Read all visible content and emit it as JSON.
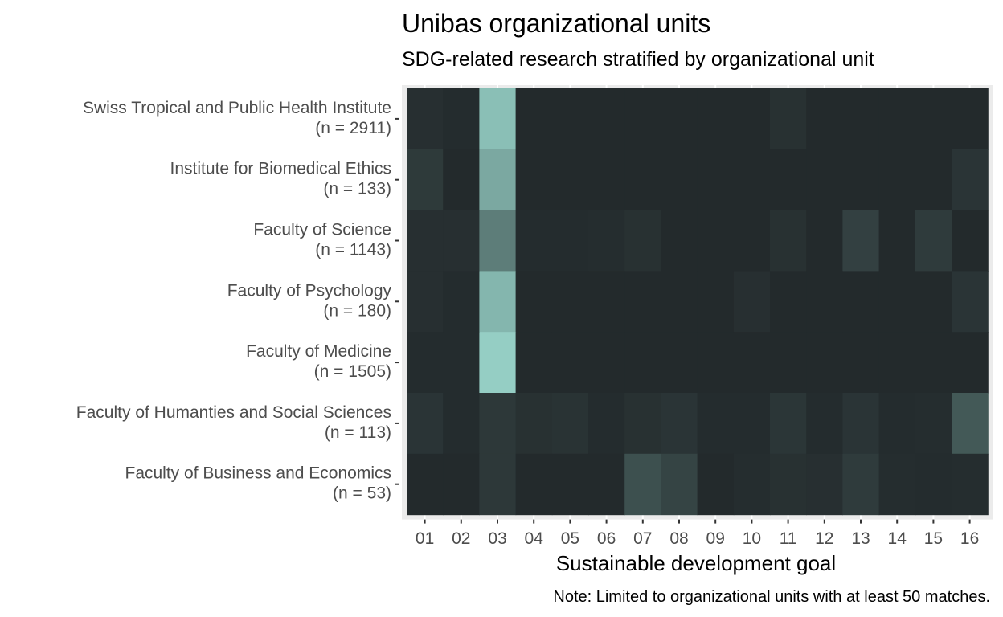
{
  "chart_data": {
    "type": "heatmap",
    "title": "Unibas organizational units",
    "subtitle": "SDG-related research stratified by organizational unit",
    "xlabel": "Sustainable development goal",
    "caption": "Note: Limited to organizational units with at least 50 matches.",
    "x_categories": [
      "01",
      "02",
      "03",
      "04",
      "05",
      "06",
      "07",
      "08",
      "09",
      "10",
      "11",
      "12",
      "13",
      "14",
      "15",
      "16"
    ],
    "y_categories": [
      {
        "name": "Swiss Tropical and Public Health Institute",
        "n": "(n = 2911)"
      },
      {
        "name": "Institute for Biomedical Ethics",
        "n": "(n = 133)"
      },
      {
        "name": "Faculty of Science",
        "n": "(n = 1143)"
      },
      {
        "name": "Faculty of Psychology",
        "n": "(n = 180)"
      },
      {
        "name": "Faculty of Medicine",
        "n": "(n = 1505)"
      },
      {
        "name": "Faculty of Humanties and Social Sciences",
        "n": "(n = 113)"
      },
      {
        "name": "Faculty of Business and Economics",
        "n": "(n = 53)"
      }
    ],
    "values": [
      [
        0.03,
        0.01,
        0.86,
        0.0,
        0.0,
        0.0,
        0.0,
        0.0,
        0.0,
        0.0,
        0.04,
        0.0,
        0.0,
        0.0,
        0.0,
        0.0
      ],
      [
        0.09,
        0.0,
        0.73,
        0.0,
        0.0,
        0.0,
        0.0,
        0.0,
        0.0,
        0.0,
        0.0,
        0.0,
        0.0,
        0.0,
        0.0,
        0.06
      ],
      [
        0.03,
        0.03,
        0.48,
        0.01,
        0.01,
        0.02,
        0.04,
        0.0,
        0.0,
        0.0,
        0.04,
        0.0,
        0.13,
        0.0,
        0.1,
        0.0
      ],
      [
        0.03,
        0.01,
        0.81,
        0.0,
        0.0,
        0.0,
        0.0,
        0.0,
        0.0,
        0.03,
        0.0,
        0.0,
        0.0,
        0.0,
        0.0,
        0.06
      ],
      [
        0.01,
        0.01,
        0.95,
        0.0,
        0.0,
        0.0,
        0.0,
        0.0,
        0.0,
        0.0,
        0.0,
        0.0,
        0.0,
        0.0,
        0.0,
        0.0
      ],
      [
        0.06,
        0.01,
        0.08,
        0.04,
        0.05,
        0.01,
        0.04,
        0.06,
        0.01,
        0.01,
        0.07,
        0.01,
        0.06,
        0.01,
        0.02,
        0.27
      ],
      [
        0.0,
        0.0,
        0.08,
        0.0,
        0.0,
        0.0,
        0.22,
        0.15,
        0.0,
        0.02,
        0.04,
        0.03,
        0.1,
        0.02,
        0.01,
        0.02
      ]
    ],
    "fill_scale": {
      "low": "#232a2c",
      "high": "#9bd7cc"
    },
    "panel_background": "#ebebeb",
    "grid_color": "#ffffff"
  }
}
